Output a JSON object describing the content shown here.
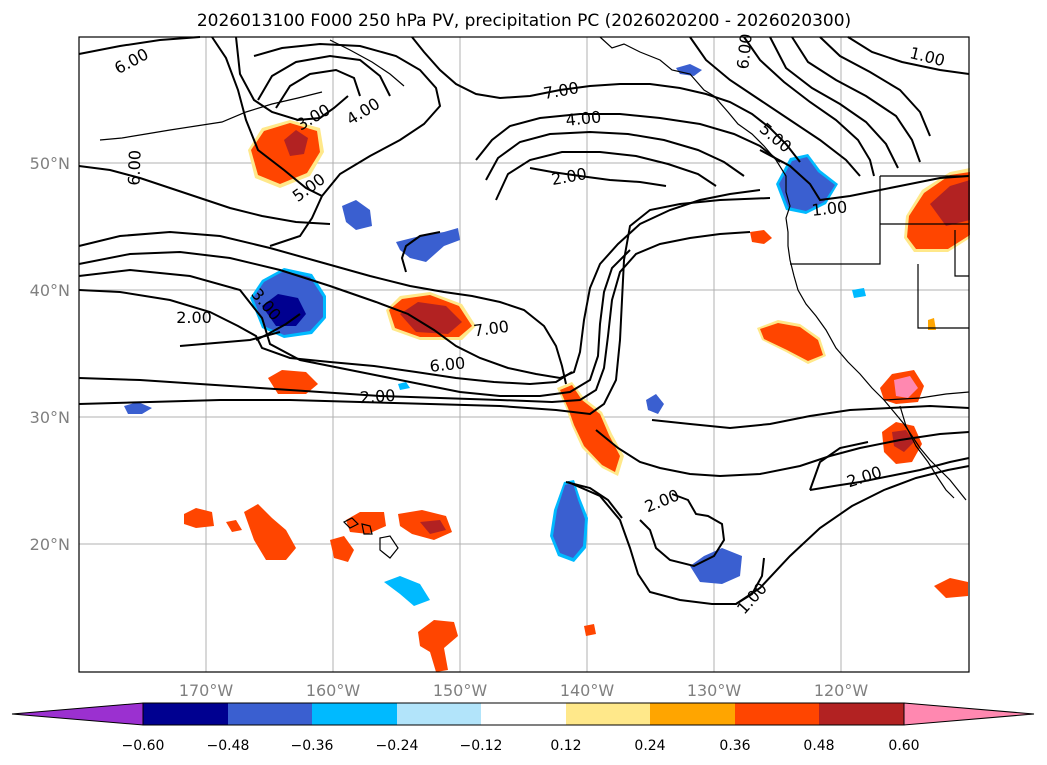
{
  "title": "2026013100 F000 250 hPa PV, precipitation PC (2026020200 - 2026020300)",
  "lat_labels": [
    "50°N",
    "40°N",
    "30°N",
    "20°N"
  ],
  "lon_labels": [
    "170°W",
    "160°W",
    "150°W",
    "140°W",
    "130°W",
    "120°W"
  ],
  "contour_labels": [
    "6.00",
    "3.00",
    "4.00",
    "6.00",
    "5.00",
    "2.00",
    "3.00",
    "7.00",
    "6.00",
    "2.00",
    "7.00",
    "4.00",
    "2.00",
    "6.00",
    "5.00",
    "1.00",
    "1.00",
    "2.00",
    "2.00",
    "1.00"
  ],
  "colorbar": {
    "colors": [
      "#9b30d0",
      "#000090",
      "#3a5fd0",
      "#00baff",
      "#b2e4fa",
      "#ffffff",
      "#ffe88a",
      "#ffa500",
      "#ff4500",
      "#b22222",
      "#ff88b0"
    ],
    "tick_labels": [
      "−0.60",
      "−0.48",
      "−0.36",
      "−0.24",
      "−0.12",
      "0.12",
      "0.24",
      "0.36",
      "0.48",
      "0.60"
    ]
  },
  "chart_data": {
    "type": "heatmap",
    "title": "2026013100 F000 250 hPa PV, precipitation PC (2026020200 - 2026020300)",
    "lat_range": [
      10,
      60
    ],
    "lon_range": [
      -180,
      -110
    ],
    "lat_ticks": [
      "50°N",
      "40°N",
      "30°N",
      "20°N"
    ],
    "lon_ticks": [
      "170°W",
      "160°W",
      "150°W",
      "140°W",
      "130°W",
      "120°W"
    ],
    "contour_field": "250 hPa PV",
    "contour_levels": [
      1.0,
      2.0,
      3.0,
      4.0,
      5.0,
      6.0,
      7.0
    ],
    "shaded_field": "precipitation PC",
    "color_levels": [
      -0.6,
      -0.48,
      -0.36,
      -0.24,
      -0.12,
      0.12,
      0.24,
      0.36,
      0.48,
      0.6
    ],
    "extend": "both"
  }
}
